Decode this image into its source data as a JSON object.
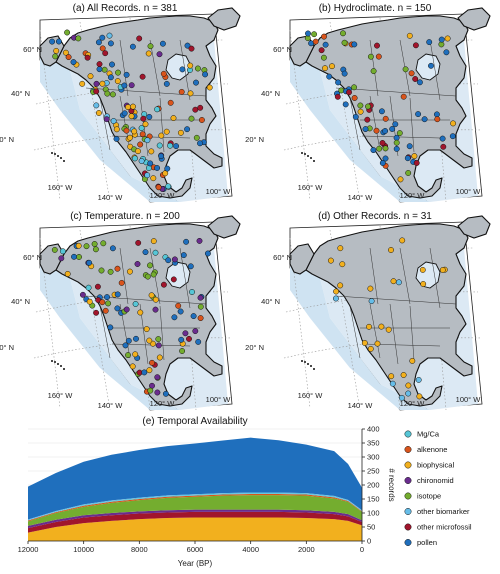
{
  "maps": [
    {
      "id": "a",
      "title": "(a) All Records. n = 381",
      "seed": 11,
      "n_dots": 150,
      "cats": [
        "pollen",
        "pollen",
        "pollen",
        "biophysical",
        "biophysical",
        "isotope",
        "isotope",
        "other microfossil",
        "chironomid",
        "Mg/Ca",
        "alkenone",
        "other biomarker"
      ]
    },
    {
      "id": "b",
      "title": "(b) Hydroclimate. n = 150",
      "seed": 23,
      "n_dots": 90,
      "cats": [
        "pollen",
        "pollen",
        "pollen",
        "biophysical",
        "biophysical",
        "isotope",
        "isotope",
        "other microfossil",
        "alkenone"
      ]
    },
    {
      "id": "c",
      "title": "(c) Temperature. n = 200",
      "seed": 37,
      "n_dots": 110,
      "cats": [
        "pollen",
        "pollen",
        "pollen",
        "isotope",
        "isotope",
        "other microfossil",
        "chironomid",
        "Mg/Ca",
        "alkenone",
        "biophysical"
      ]
    },
    {
      "id": "d",
      "title": "(d) Other Records. n = 31",
      "seed": 41,
      "n_dots": 31,
      "cats": [
        "biophysical",
        "biophysical",
        "biophysical",
        "biophysical",
        "other biomarker"
      ]
    }
  ],
  "map_labels": {
    "lat60": "60° N",
    "lat40": "40° N",
    "lat20": "20° N",
    "lon160": "160° W",
    "lon140": "140° W",
    "lon120": "120° W",
    "lon100": "100° W"
  },
  "chart_data": {
    "type": "area",
    "title": "(e) Temporal Availability",
    "xlabel": "Year (BP)",
    "ylabel": "# records",
    "x_reversed": true,
    "xlim": [
      12000,
      0
    ],
    "ylim": [
      0,
      400
    ],
    "x_ticks": [
      "12000",
      "10000",
      "8000",
      "6000",
      "4000",
      "2000",
      "0"
    ],
    "y_ticks": [
      "0",
      "50",
      "100",
      "150",
      "200",
      "250",
      "300",
      "350",
      "400"
    ],
    "x": [
      12000,
      11000,
      10000,
      9000,
      8000,
      7000,
      6000,
      5000,
      4000,
      3000,
      2000,
      1000,
      500,
      0
    ],
    "stack_order": [
      "biophysical",
      "other microfossil",
      "chironomid",
      "isotope",
      "alkenone",
      "Mg/Ca",
      "other biomarker",
      "pollen"
    ],
    "series": [
      {
        "name": "Mg/Ca",
        "color": "#56c6d6",
        "values": [
          2,
          2,
          3,
          3,
          3,
          3,
          3,
          3,
          3,
          3,
          3,
          3,
          2,
          2
        ]
      },
      {
        "name": "alkenone",
        "color": "#d9541c",
        "values": [
          3,
          3,
          4,
          4,
          4,
          4,
          4,
          4,
          4,
          4,
          4,
          4,
          3,
          2
        ]
      },
      {
        "name": "biophysical",
        "color": "#f2b01e",
        "values": [
          30,
          50,
          64,
          72,
          78,
          82,
          84,
          84,
          84,
          84,
          82,
          78,
          72,
          56
        ]
      },
      {
        "name": "chironomid",
        "color": "#6a2c8e",
        "values": [
          8,
          8,
          8,
          8,
          8,
          8,
          8,
          8,
          8,
          8,
          8,
          8,
          8,
          6
        ]
      },
      {
        "name": "isotope",
        "color": "#74ad2f",
        "values": [
          16,
          24,
          30,
          36,
          40,
          44,
          46,
          50,
          52,
          52,
          52,
          48,
          44,
          30
        ]
      },
      {
        "name": "other biomarker",
        "color": "#66bde8",
        "values": [
          2,
          2,
          2,
          2,
          2,
          2,
          2,
          2,
          2,
          2,
          2,
          2,
          2,
          2
        ]
      },
      {
        "name": "other microfossil",
        "color": "#a1152c",
        "values": [
          16,
          18,
          20,
          20,
          20,
          20,
          20,
          20,
          20,
          20,
          20,
          18,
          16,
          12
        ]
      },
      {
        "name": "pollen",
        "color": "#1f6fbd",
        "values": [
          117,
          136,
          152,
          163,
          170,
          176,
          181,
          188,
          196,
          187,
          173,
          160,
          128,
          80
        ]
      }
    ],
    "legend_position": "right"
  }
}
